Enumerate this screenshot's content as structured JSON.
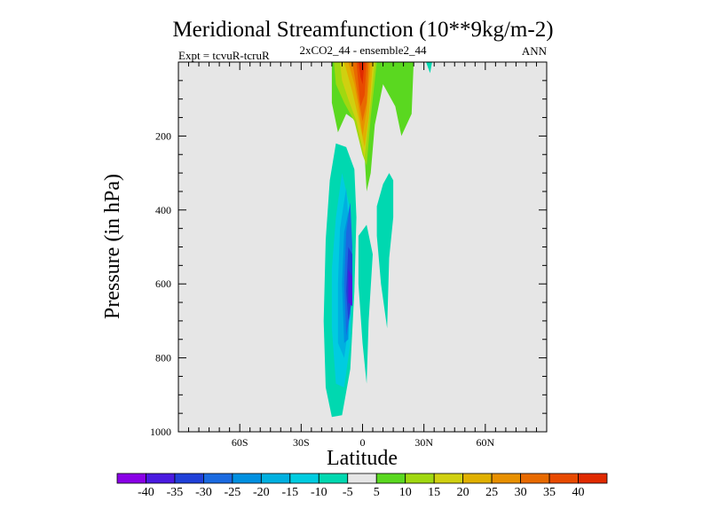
{
  "chart_data": {
    "type": "heatmap",
    "title": "Meridional Streamfunction (10**9kg/m-2)",
    "subtitle_left": "Expt = tcvuR-tcruR",
    "subtitle_center": "2xCO2_44 - ensemble2_44",
    "subtitle_right": "ANN",
    "xlabel": "Latitude",
    "ylabel": "Pressure (in hPa)",
    "xlim": [
      -90,
      90
    ],
    "ylim": [
      1000,
      0
    ],
    "x_ticks": [
      {
        "value": -60,
        "label": "60S"
      },
      {
        "value": -30,
        "label": "30S"
      },
      {
        "value": 0,
        "label": "0"
      },
      {
        "value": 30,
        "label": "30N"
      },
      {
        "value": 60,
        "label": "60N"
      }
    ],
    "y_ticks": [
      {
        "value": 200,
        "label": "200"
      },
      {
        "value": 400,
        "label": "400"
      },
      {
        "value": 600,
        "label": "600"
      },
      {
        "value": 800,
        "label": "800"
      },
      {
        "value": 1000,
        "label": "1000"
      }
    ],
    "background_color": "#e6e6e6",
    "colorbar": {
      "labels": [
        "-40",
        "-35",
        "-30",
        "-25",
        "-20",
        "-15",
        "-10",
        "-5",
        "5",
        "10",
        "15",
        "20",
        "25",
        "30",
        "35",
        "40"
      ],
      "colors": [
        "#8a00e6",
        "#4a1ae0",
        "#2040d8",
        "#1a6ae0",
        "#0090e0",
        "#00b0e0",
        "#00cce0",
        "#00d8b0",
        "#e6e6e6",
        "#5ad820",
        "#a0d810",
        "#d0d010",
        "#e0b000",
        "#e89000",
        "#e86a00",
        "#e84a00",
        "#e02a00"
      ]
    },
    "contours": [
      {
        "value": -5,
        "color": "#00d8b0",
        "points": [
          [
            -13,
            220
          ],
          [
            -16,
            320
          ],
          [
            -18,
            480
          ],
          [
            -19,
            700
          ],
          [
            -18,
            880
          ],
          [
            -15,
            960
          ],
          [
            -10,
            955
          ],
          [
            -6,
            830
          ],
          [
            -4,
            620
          ],
          [
            -3,
            420
          ],
          [
            -4,
            290
          ],
          [
            -8,
            230
          ]
        ]
      },
      {
        "value": -10,
        "color": "#00cce0",
        "points": [
          [
            -10,
            300
          ],
          [
            -13,
            420
          ],
          [
            -15,
            560
          ],
          [
            -15,
            720
          ],
          [
            -13,
            870
          ],
          [
            -9,
            880
          ],
          [
            -6,
            760
          ],
          [
            -5,
            560
          ],
          [
            -6,
            400
          ]
        ]
      },
      {
        "value": -15,
        "color": "#00b0e0",
        "points": [
          [
            -8,
            340
          ],
          [
            -11,
            450
          ],
          [
            -12,
            600
          ],
          [
            -12,
            760
          ],
          [
            -9,
            800
          ],
          [
            -6,
            680
          ],
          [
            -6,
            500
          ]
        ]
      },
      {
        "value": -20,
        "color": "#0090e0",
        "points": [
          [
            -6,
            380
          ],
          [
            -9,
            460
          ],
          [
            -10,
            600
          ],
          [
            -9,
            760
          ],
          [
            -7,
            750
          ],
          [
            -6,
            560
          ]
        ]
      },
      {
        "value": -25,
        "color": "#1a6ae0",
        "points": [
          [
            -6,
            380
          ],
          [
            -8,
            460
          ],
          [
            -9,
            600
          ],
          [
            -8,
            740
          ],
          [
            -6,
            680
          ],
          [
            -5,
            500
          ]
        ]
      },
      {
        "value": -30,
        "color": "#2040d8",
        "points": [
          [
            -7,
            500
          ],
          [
            -8,
            620
          ],
          [
            -7,
            700
          ],
          [
            -5,
            640
          ],
          [
            -5,
            520
          ]
        ]
      },
      {
        "value": -35,
        "color": "#4a1ae0",
        "points": [
          [
            -7,
            560
          ],
          [
            -7,
            650
          ],
          [
            -5,
            660
          ],
          [
            -5,
            580
          ]
        ]
      },
      {
        "value": -5,
        "color": "#00d8b0",
        "points": [
          [
            7,
            390
          ],
          [
            10,
            330
          ],
          [
            13,
            300
          ],
          [
            15,
            320
          ],
          [
            15,
            420
          ],
          [
            13,
            530
          ],
          [
            12,
            720
          ],
          [
            9,
            600
          ],
          [
            7,
            470
          ]
        ]
      },
      {
        "value": -5,
        "color": "#00d8b0",
        "points": [
          [
            -2,
            470
          ],
          [
            2,
            440
          ],
          [
            5,
            520
          ],
          [
            3,
            700
          ],
          [
            2,
            870
          ],
          [
            0,
            760
          ],
          [
            -2,
            600
          ]
        ]
      },
      {
        "value": -5,
        "color": "#00d8b0",
        "points": [
          [
            31,
            0
          ],
          [
            34,
            0
          ],
          [
            33,
            30
          ]
        ]
      },
      {
        "value": 5,
        "color": "#5ad820",
        "points": [
          [
            -15,
            0
          ],
          [
            8,
            0
          ],
          [
            25,
            0
          ],
          [
            24,
            140
          ],
          [
            19,
            200
          ],
          [
            16,
            120
          ],
          [
            10,
            60
          ],
          [
            6,
            170
          ],
          [
            4,
            300
          ],
          [
            2,
            350
          ],
          [
            1,
            250
          ],
          [
            -3,
            160
          ],
          [
            -8,
            140
          ],
          [
            -12,
            190
          ],
          [
            -15,
            110
          ]
        ]
      },
      {
        "value": 10,
        "color": "#a0d810",
        "points": [
          [
            -14,
            0
          ],
          [
            7,
            0
          ],
          [
            4,
            150
          ],
          [
            2,
            280
          ],
          [
            0,
            250
          ],
          [
            -4,
            160
          ],
          [
            -9,
            110
          ],
          [
            -13,
            60
          ]
        ]
      },
      {
        "value": 15,
        "color": "#d0d010",
        "points": [
          [
            -11,
            0
          ],
          [
            6,
            0
          ],
          [
            3,
            160
          ],
          [
            1,
            260
          ],
          [
            -3,
            160
          ],
          [
            -7,
            100
          ],
          [
            -10,
            50
          ]
        ]
      },
      {
        "value": 20,
        "color": "#e0b000",
        "points": [
          [
            -9,
            0
          ],
          [
            5,
            0
          ],
          [
            3,
            150
          ],
          [
            1,
            230
          ],
          [
            -2,
            150
          ],
          [
            -5,
            80
          ]
        ]
      },
      {
        "value": 25,
        "color": "#e89000",
        "points": [
          [
            -7,
            0
          ],
          [
            4,
            0
          ],
          [
            2,
            130
          ],
          [
            0,
            200
          ],
          [
            -2,
            120
          ],
          [
            -4,
            60
          ]
        ]
      },
      {
        "value": 30,
        "color": "#e86a00",
        "points": [
          [
            -5,
            0
          ],
          [
            3,
            0
          ],
          [
            2,
            110
          ],
          [
            0,
            160
          ],
          [
            -2,
            100
          ]
        ]
      },
      {
        "value": 35,
        "color": "#e84a00",
        "points": [
          [
            -3,
            0
          ],
          [
            2,
            0
          ],
          [
            1,
            90
          ],
          [
            -1,
            120
          ],
          [
            -2,
            60
          ]
        ]
      },
      {
        "value": 40,
        "color": "#e02a00",
        "points": [
          [
            -2,
            0
          ],
          [
            1,
            0
          ],
          [
            0,
            60
          ],
          [
            -1,
            40
          ]
        ]
      }
    ]
  }
}
